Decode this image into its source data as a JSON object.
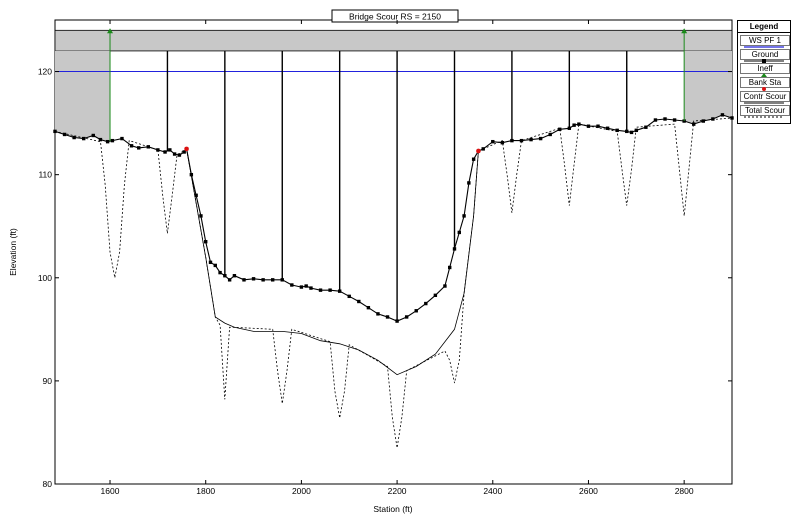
{
  "chart_data": {
    "type": "line",
    "title": "Bridge Scour RS = 2150",
    "xlabel": "Station (ft)",
    "ylabel": "Elevation (ft)",
    "xlim": [
      1485,
      2900
    ],
    "ylim": [
      80,
      125
    ],
    "x_ticks": [
      1600,
      1800,
      2000,
      2200,
      2400,
      2600,
      2800
    ],
    "y_ticks": [
      80,
      90,
      100,
      110,
      120
    ],
    "grid": false,
    "legend_position": "right",
    "deck": {
      "top": 124,
      "low_chord": 122,
      "x": [
        1485,
        2900
      ]
    },
    "water_surface": {
      "name": "WS PF 1",
      "elevation": 120,
      "color": "#2222dd"
    },
    "piers": [
      1720,
      1840,
      1960,
      2080,
      2200,
      2320,
      2440,
      2560,
      2680
    ],
    "ineffective": [
      {
        "station": 1600,
        "elevation": 124
      },
      {
        "station": 2800,
        "elevation": 124
      }
    ],
    "bank_stations": [
      {
        "station": 1760,
        "elevation": 112.5
      },
      {
        "station": 2370,
        "elevation": 112.3
      }
    ],
    "series": [
      {
        "name": "Ground",
        "color": "#000000",
        "x": [
          1485,
          1505,
          1525,
          1545,
          1565,
          1580,
          1595,
          1605,
          1625,
          1645,
          1660,
          1680,
          1700,
          1715,
          1725,
          1735,
          1745,
          1755,
          1760,
          1770,
          1780,
          1790,
          1800,
          1810,
          1820,
          1830,
          1840,
          1850,
          1860,
          1880,
          1900,
          1920,
          1940,
          1960,
          1980,
          2000,
          2010,
          2020,
          2040,
          2060,
          2080,
          2100,
          2120,
          2140,
          2160,
          2180,
          2200,
          2220,
          2240,
          2260,
          2280,
          2300,
          2310,
          2320,
          2330,
          2340,
          2350,
          2360,
          2370,
          2380,
          2400,
          2420,
          2440,
          2460,
          2480,
          2500,
          2520,
          2540,
          2560,
          2570,
          2580,
          2600,
          2620,
          2640,
          2660,
          2680,
          2690,
          2700,
          2720,
          2740,
          2760,
          2780,
          2800,
          2820,
          2840,
          2860,
          2880,
          2900
        ],
        "y": [
          114.2,
          113.9,
          113.6,
          113.5,
          113.8,
          113.4,
          113.2,
          113.3,
          113.5,
          112.8,
          112.6,
          112.7,
          112.4,
          112.2,
          112.4,
          112.0,
          111.9,
          112.2,
          112.5,
          110.0,
          108.0,
          106.0,
          103.5,
          101.5,
          101.2,
          100.5,
          100.2,
          99.8,
          100.2,
          99.8,
          99.9,
          99.8,
          99.8,
          99.8,
          99.3,
          99.1,
          99.2,
          99.0,
          98.8,
          98.8,
          98.7,
          98.2,
          97.7,
          97.1,
          96.5,
          96.2,
          95.8,
          96.2,
          96.8,
          97.5,
          98.3,
          99.2,
          101.0,
          102.8,
          104.4,
          106.0,
          109.2,
          111.5,
          112.3,
          112.5,
          113.2,
          113.1,
          113.3,
          113.3,
          113.4,
          113.5,
          113.9,
          114.4,
          114.5,
          114.8,
          114.9,
          114.7,
          114.7,
          114.5,
          114.3,
          114.2,
          114.1,
          114.3,
          114.6,
          115.3,
          115.4,
          115.3,
          115.2,
          114.9,
          115.2,
          115.4,
          115.8,
          115.5
        ]
      },
      {
        "name": "Contr Scour",
        "color": "#000000",
        "x": [
          1760,
          1800,
          1820,
          1840,
          1860,
          1900,
          1960,
          2000,
          2040,
          2080,
          2120,
          2160,
          2200,
          2240,
          2280,
          2320,
          2340,
          2360,
          2370
        ],
        "y": [
          112.5,
          102.0,
          96.2,
          95.6,
          95.2,
          94.8,
          94.8,
          94.6,
          93.9,
          93.6,
          93.0,
          92.0,
          90.6,
          91.4,
          92.6,
          95.0,
          98.5,
          106.0,
          112.3
        ]
      },
      {
        "name": "Total Scour",
        "color": "#000000",
        "x": [
          1485,
          1580,
          1590,
          1600,
          1610,
          1620,
          1630,
          1640,
          1700,
          1710,
          1720,
          1730,
          1740,
          1760,
          1800,
          1820,
          1830,
          1840,
          1850,
          1860,
          1940,
          1950,
          1960,
          1970,
          1980,
          2060,
          2070,
          2080,
          2090,
          2100,
          2180,
          2190,
          2200,
          2210,
          2220,
          2300,
          2310,
          2320,
          2330,
          2340,
          2360,
          2370,
          2420,
          2430,
          2440,
          2450,
          2460,
          2540,
          2550,
          2560,
          2570,
          2580,
          2660,
          2670,
          2680,
          2690,
          2700,
          2780,
          2790,
          2800,
          2810,
          2820,
          2900
        ],
        "y": [
          114.2,
          113.2,
          109.0,
          102.5,
          100.0,
          102.5,
          109.0,
          113.3,
          112.4,
          108.0,
          104.3,
          108.0,
          111.9,
          112.5,
          102.0,
          96.2,
          95.4,
          88.2,
          95.2,
          95.2,
          95.0,
          91.0,
          87.8,
          91.0,
          95.0,
          93.8,
          89.0,
          86.4,
          89.0,
          93.5,
          91.4,
          86.5,
          83.5,
          86.5,
          91.0,
          92.9,
          92.0,
          89.8,
          92.0,
          98.5,
          106.0,
          112.3,
          113.3,
          110.0,
          106.3,
          110.0,
          113.3,
          114.5,
          111.0,
          107.0,
          111.0,
          114.9,
          114.2,
          110.5,
          107.0,
          110.5,
          114.6,
          114.9,
          110.5,
          106.0,
          110.5,
          115.2,
          115.5
        ]
      }
    ],
    "legend": [
      "WS PF 1",
      "Ground",
      "Ineff",
      "Bank Sta",
      "Contr Scour",
      "Total Scour"
    ]
  },
  "legend_title": "Legend",
  "colors": {
    "deck_fill": "#c8c8c8",
    "ineff": "#1a8a1a",
    "bank": "#dd1111",
    "water": "#2222dd"
  }
}
